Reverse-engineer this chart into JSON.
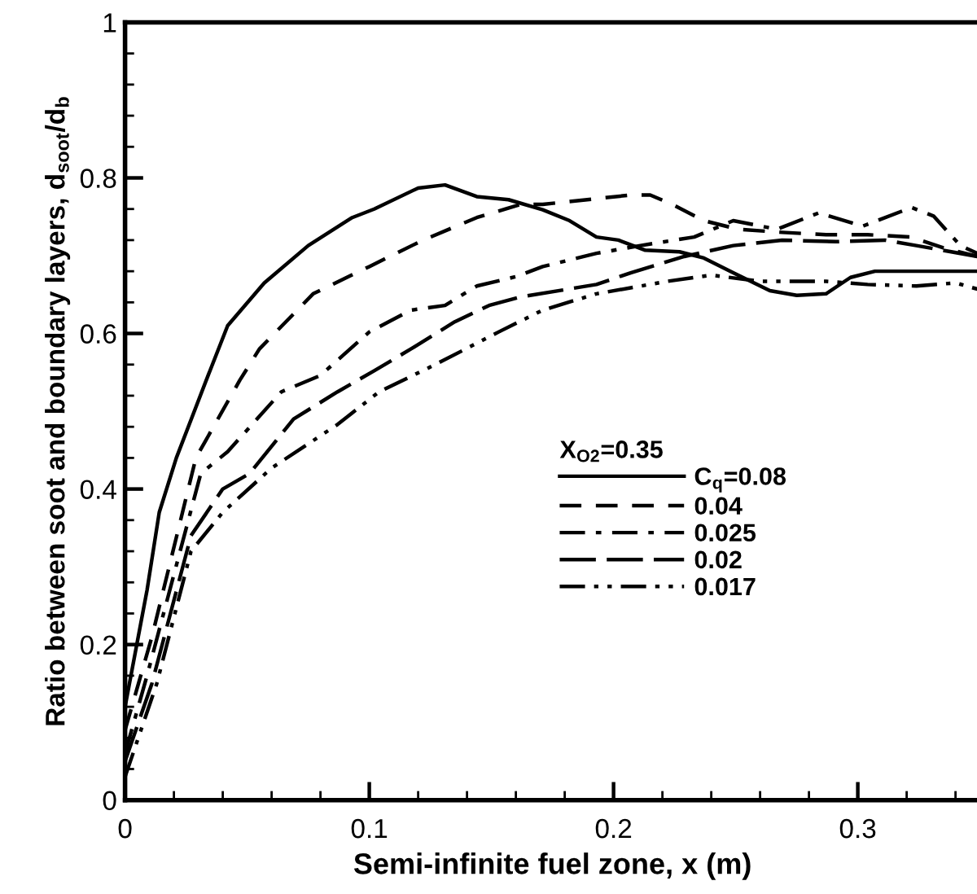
{
  "chart_data": {
    "type": "line",
    "xlabel": "Semi-infinite fuel zone, x (m)",
    "ylabel": "Ratio between soot and boundary layers, d$_{soot}$/d$_{b}$",
    "legend_title": "X$_{O2}$=0.35",
    "legend": "right",
    "xlim": [
      0,
      0.35
    ],
    "xticks": [
      0,
      0.1,
      0.2,
      0.3
    ],
    "ylim": [
      0,
      1
    ],
    "yticks": [
      0,
      0.2,
      0.4,
      0.6,
      0.8,
      1
    ],
    "grid": false,
    "series": [
      {
        "name": "C$_{q}$=0.08",
        "color": "#000000",
        "line_style": "solid",
        "x": [
          0,
          0.009,
          0.014,
          0.021,
          0.034,
          0.042,
          0.057,
          0.075,
          0.093,
          0.102,
          0.12,
          0.131,
          0.144,
          0.157,
          0.171,
          0.182,
          0.193,
          0.202,
          0.213,
          0.227,
          0.237,
          0.249,
          0.264,
          0.275,
          0.287,
          0.297,
          0.307,
          0.349
        ],
        "values": [
          0.12,
          0.27,
          0.37,
          0.44,
          0.546,
          0.61,
          0.665,
          0.713,
          0.749,
          0.76,
          0.787,
          0.791,
          0.776,
          0.772,
          0.759,
          0.745,
          0.724,
          0.72,
          0.707,
          0.705,
          0.697,
          0.678,
          0.655,
          0.649,
          0.651,
          0.672,
          0.68,
          0.68
        ]
      },
      {
        "name": "0.04",
        "color": "#000000",
        "line_style": "dashed",
        "x": [
          0,
          0.011,
          0.029,
          0.047,
          0.055,
          0.077,
          0.1,
          0.122,
          0.144,
          0.162,
          0.171,
          0.207,
          0.215,
          0.224,
          0.237,
          0.251,
          0.269,
          0.287,
          0.304,
          0.322,
          0.335,
          0.349
        ],
        "values": [
          0.09,
          0.21,
          0.44,
          0.54,
          0.58,
          0.651,
          0.686,
          0.72,
          0.749,
          0.766,
          0.766,
          0.778,
          0.778,
          0.766,
          0.745,
          0.734,
          0.73,
          0.727,
          0.727,
          0.724,
          0.71,
          0.699
        ]
      },
      {
        "name": "0.025",
        "color": "#000000",
        "line_style": "dashdot",
        "x": [
          0,
          0.009,
          0.031,
          0.042,
          0.064,
          0.08,
          0.1,
          0.117,
          0.131,
          0.144,
          0.16,
          0.171,
          0.193,
          0.211,
          0.233,
          0.249,
          0.267,
          0.284,
          0.302,
          0.322,
          0.331,
          0.342,
          0.349
        ],
        "values": [
          0.06,
          0.16,
          0.42,
          0.448,
          0.525,
          0.546,
          0.602,
          0.63,
          0.636,
          0.661,
          0.673,
          0.686,
          0.703,
          0.713,
          0.724,
          0.745,
          0.734,
          0.755,
          0.738,
          0.762,
          0.751,
          0.713,
          0.703
        ]
      },
      {
        "name": "0.02",
        "color": "#000000",
        "line_style": "longdash",
        "x": [
          0,
          0.011,
          0.027,
          0.04,
          0.051,
          0.069,
          0.087,
          0.102,
          0.117,
          0.135,
          0.149,
          0.162,
          0.193,
          0.207,
          0.229,
          0.249,
          0.269,
          0.291,
          0.311,
          0.324,
          0.349
        ],
        "values": [
          0.05,
          0.15,
          0.34,
          0.4,
          0.42,
          0.49,
          0.525,
          0.552,
          0.58,
          0.615,
          0.636,
          0.647,
          0.663,
          0.678,
          0.699,
          0.713,
          0.72,
          0.718,
          0.72,
          0.713,
          0.699
        ]
      },
      {
        "name": "0.017",
        "color": "#000000",
        "line_style": "dashdotdot",
        "x": [
          0,
          0.013,
          0.027,
          0.04,
          0.06,
          0.087,
          0.104,
          0.127,
          0.153,
          0.171,
          0.193,
          0.222,
          0.24,
          0.26,
          0.287,
          0.304,
          0.324,
          0.34,
          0.349
        ],
        "values": [
          0.03,
          0.15,
          0.32,
          0.37,
          0.427,
          0.483,
          0.525,
          0.56,
          0.602,
          0.63,
          0.651,
          0.667,
          0.675,
          0.667,
          0.667,
          0.663,
          0.661,
          0.665,
          0.657
        ]
      }
    ]
  }
}
